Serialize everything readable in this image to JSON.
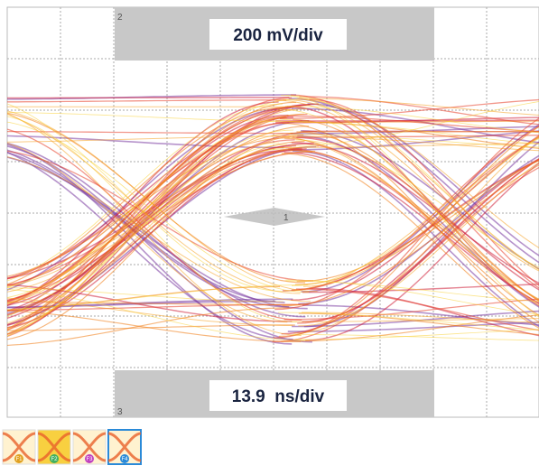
{
  "screen": {
    "vertical_scale": "200 mV/div",
    "horizontal_scale": "13.9  ns/div",
    "markers": [
      "2",
      "3",
      "1"
    ],
    "thumbnails": [
      "F1",
      "F2",
      "F3",
      "F4"
    ]
  }
}
